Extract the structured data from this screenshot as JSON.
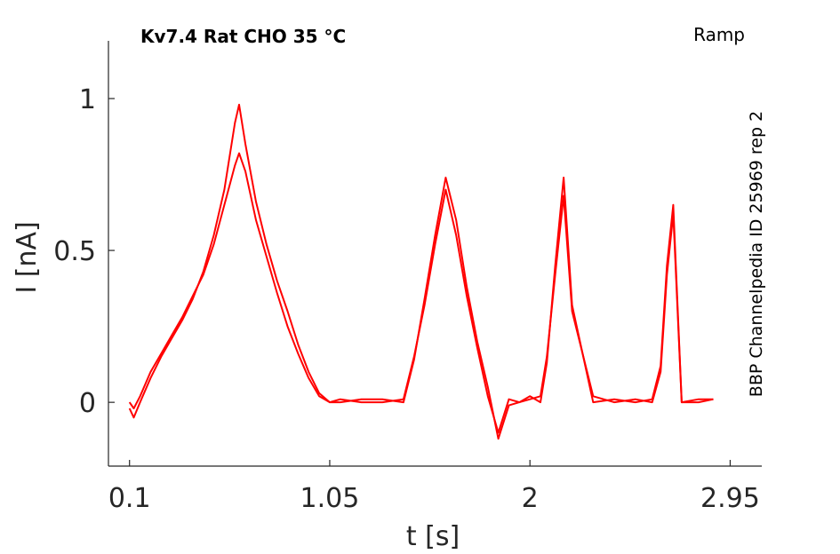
{
  "chart_data": {
    "type": "line",
    "title": "Kv7.4  Rat  CHO  35 °C",
    "protocol": "Ramp",
    "side_label": "BBP Channelpedia ID 25969 rep 2",
    "xlabel": "t [s]",
    "ylabel": "I [nA]",
    "xlim": [
      0.0,
      3.1
    ],
    "ylim": [
      -0.21,
      1.19
    ],
    "xticks": [
      0.1,
      1.05,
      2,
      2.95
    ],
    "xtick_labels": [
      "0.1",
      "1.05",
      "2",
      "2.95"
    ],
    "yticks": [
      0,
      0.5,
      1
    ],
    "ytick_labels": [
      "0",
      "0.5",
      "1"
    ],
    "grid": false,
    "line_color": "#ff0000",
    "series": [
      {
        "x": [
          0.1,
          0.12,
          0.15,
          0.2,
          0.25,
          0.3,
          0.35,
          0.4,
          0.45,
          0.5,
          0.55,
          0.6,
          0.62,
          0.65,
          0.7,
          0.75,
          0.8,
          0.85,
          0.9,
          0.95,
          1.0,
          1.05,
          1.1,
          1.2,
          1.3,
          1.4,
          1.45,
          1.5,
          1.55,
          1.6,
          1.65,
          1.7,
          1.75,
          1.8,
          1.85,
          1.9,
          1.95,
          2.0,
          2.05,
          2.08,
          2.12,
          2.16,
          2.2,
          2.3,
          2.4,
          2.5,
          2.58,
          2.62,
          2.65,
          2.68,
          2.72,
          2.8,
          2.87
        ],
        "y": [
          0.0,
          -0.02,
          0.02,
          0.1,
          0.16,
          0.22,
          0.28,
          0.35,
          0.42,
          0.52,
          0.65,
          0.78,
          0.82,
          0.76,
          0.6,
          0.48,
          0.36,
          0.25,
          0.16,
          0.08,
          0.02,
          0.0,
          0.01,
          0.0,
          0.0,
          0.01,
          0.15,
          0.32,
          0.52,
          0.7,
          0.55,
          0.35,
          0.18,
          0.02,
          -0.1,
          0.01,
          0.0,
          0.01,
          0.02,
          0.15,
          0.42,
          0.68,
          0.3,
          0.02,
          0.0,
          0.01,
          0.0,
          0.1,
          0.42,
          0.62,
          0.0,
          0.01,
          0.01
        ]
      },
      {
        "x": [
          0.1,
          0.12,
          0.15,
          0.2,
          0.25,
          0.3,
          0.35,
          0.4,
          0.45,
          0.5,
          0.55,
          0.6,
          0.62,
          0.65,
          0.7,
          0.75,
          0.8,
          0.85,
          0.9,
          0.95,
          1.0,
          1.05,
          1.1,
          1.2,
          1.3,
          1.4,
          1.45,
          1.5,
          1.55,
          1.6,
          1.65,
          1.7,
          1.75,
          1.8,
          1.85,
          1.9,
          1.95,
          2.0,
          2.05,
          2.08,
          2.12,
          2.16,
          2.2,
          2.3,
          2.4,
          2.5,
          2.58,
          2.62,
          2.65,
          2.68,
          2.72,
          2.8,
          2.87
        ],
        "y": [
          -0.02,
          -0.05,
          0.0,
          0.08,
          0.15,
          0.21,
          0.27,
          0.34,
          0.43,
          0.55,
          0.7,
          0.92,
          0.98,
          0.85,
          0.66,
          0.52,
          0.4,
          0.3,
          0.19,
          0.1,
          0.03,
          0.0,
          0.0,
          0.01,
          0.01,
          0.0,
          0.14,
          0.34,
          0.55,
          0.74,
          0.6,
          0.38,
          0.2,
          0.05,
          -0.12,
          -0.01,
          0.0,
          0.02,
          0.0,
          0.13,
          0.45,
          0.74,
          0.32,
          0.0,
          0.01,
          0.0,
          0.01,
          0.12,
          0.45,
          0.65,
          0.0,
          0.0,
          0.01
        ]
      }
    ]
  }
}
